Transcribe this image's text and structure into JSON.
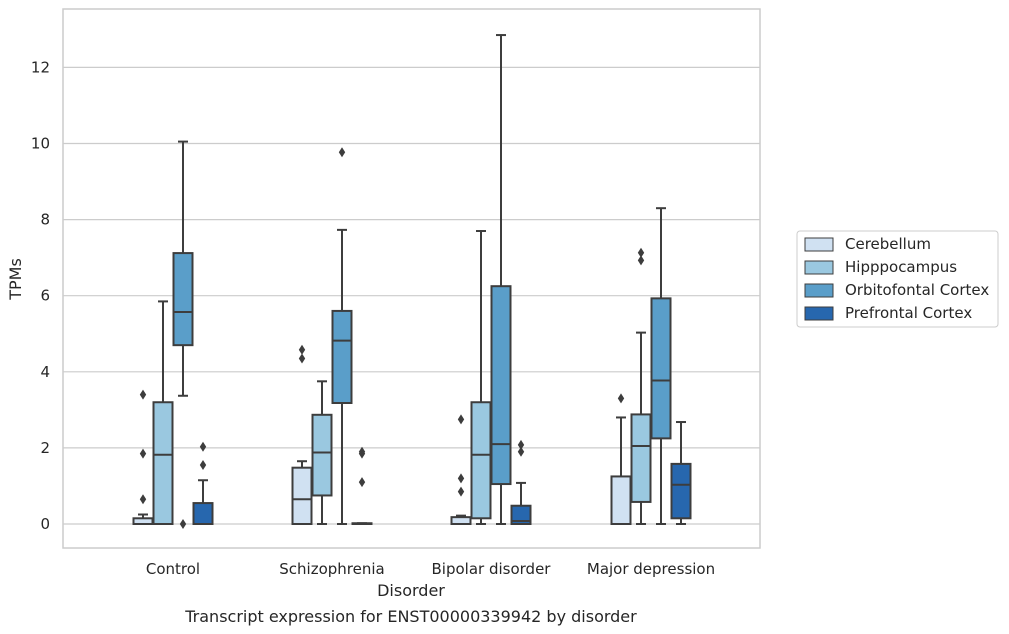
{
  "chart_data": {
    "type": "box",
    "caption": "Transcript expression for ENST00000339942 by disorder",
    "xlabel": "Disorder",
    "ylabel": "TPMs",
    "ylim": [
      -0.63,
      13.5
    ],
    "yticks": [
      0,
      2,
      4,
      6,
      8,
      10,
      12
    ],
    "grid": "horizontal",
    "legend_position": "right",
    "categories": [
      "Control",
      "Schizophrenia",
      "Bipolar disorder",
      "Major depression"
    ],
    "series": [
      {
        "name": "Cerebellum",
        "color": "#d0e1f2",
        "boxes": [
          {
            "whislo": 0,
            "q1": 0,
            "med": 0,
            "q3": 0.15,
            "whishi": 0.25,
            "fliers": [
              0.65,
              1.85,
              3.4
            ]
          },
          {
            "whislo": 0,
            "q1": 0,
            "med": 0.65,
            "q3": 1.48,
            "whishi": 1.65,
            "fliers": [
              4.35,
              4.58
            ]
          },
          {
            "whislo": 0,
            "q1": 0,
            "med": 0,
            "q3": 0.18,
            "whishi": 0.22,
            "fliers": [
              0.85,
              1.2,
              2.75
            ]
          },
          {
            "whislo": 0,
            "q1": 0,
            "med": 0,
            "q3": 1.25,
            "whishi": 2.8,
            "fliers": [
              3.3
            ]
          }
        ]
      },
      {
        "name": "Hipppocampus",
        "color": "#9ac8e0",
        "boxes": [
          {
            "whislo": 0,
            "q1": 0,
            "med": 1.82,
            "q3": 3.2,
            "whishi": 5.85,
            "fliers": []
          },
          {
            "whislo": 0,
            "q1": 0.75,
            "med": 1.88,
            "q3": 2.87,
            "whishi": 3.75,
            "fliers": []
          },
          {
            "whislo": 0,
            "q1": 0.15,
            "med": 1.82,
            "q3": 3.2,
            "whishi": 7.7,
            "fliers": []
          },
          {
            "whislo": 0,
            "q1": 0.58,
            "med": 2.05,
            "q3": 2.88,
            "whishi": 5.03,
            "fliers": [
              6.93,
              7.13
            ]
          }
        ]
      },
      {
        "name": "Orbitofontal Cortex",
        "color": "#5a9ec9",
        "boxes": [
          {
            "whislo": 3.37,
            "q1": 4.7,
            "med": 5.57,
            "q3": 7.12,
            "whishi": 10.05,
            "fliers": [
              0
            ]
          },
          {
            "whislo": 0,
            "q1": 3.18,
            "med": 4.82,
            "q3": 5.6,
            "whishi": 7.73,
            "fliers": [
              9.77
            ]
          },
          {
            "whislo": 0,
            "q1": 1.05,
            "med": 2.1,
            "q3": 6.25,
            "whishi": 12.85,
            "fliers": []
          },
          {
            "whislo": 0,
            "q1": 2.25,
            "med": 3.77,
            "q3": 5.93,
            "whishi": 8.3,
            "fliers": []
          }
        ]
      },
      {
        "name": "Prefrontal Cortex",
        "color": "#2767ae",
        "boxes": [
          {
            "whislo": 0,
            "q1": 0,
            "med": 0,
            "q3": 0.55,
            "whishi": 1.15,
            "fliers": [
              1.55,
              2.03
            ]
          },
          {
            "whislo": 0,
            "q1": 0,
            "med": 0,
            "q3": 0.02,
            "whishi": 0.02,
            "fliers": [
              1.1,
              1.85,
              1.9
            ]
          },
          {
            "whislo": 0,
            "q1": 0,
            "med": 0.08,
            "q3": 0.48,
            "whishi": 1.08,
            "fliers": [
              1.9,
              2.08
            ]
          },
          {
            "whislo": 0,
            "q1": 0.15,
            "med": 1.03,
            "q3": 1.58,
            "whishi": 2.68,
            "fliers": []
          }
        ]
      }
    ]
  }
}
